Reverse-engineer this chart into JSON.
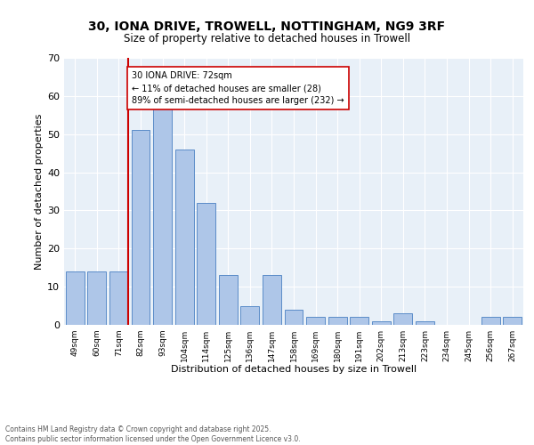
{
  "title_line1": "30, IONA DRIVE, TROWELL, NOTTINGHAM, NG9 3RF",
  "title_line2": "Size of property relative to detached houses in Trowell",
  "xlabel": "Distribution of detached houses by size in Trowell",
  "ylabel": "Number of detached properties",
  "categories": [
    "49sqm",
    "60sqm",
    "71sqm",
    "82sqm",
    "93sqm",
    "104sqm",
    "114sqm",
    "125sqm",
    "136sqm",
    "147sqm",
    "158sqm",
    "169sqm",
    "180sqm",
    "191sqm",
    "202sqm",
    "213sqm",
    "223sqm",
    "234sqm",
    "245sqm",
    "256sqm",
    "267sqm"
  ],
  "values": [
    14,
    14,
    14,
    51,
    58,
    46,
    32,
    13,
    5,
    13,
    4,
    2,
    2,
    2,
    1,
    3,
    1,
    0,
    0,
    2,
    2
  ],
  "bar_color": "#aec6e8",
  "bar_edge_color": "#5b8cc8",
  "background_color": "#e8f0f8",
  "vline_color": "#cc0000",
  "annotation_title": "30 IONA DRIVE: 72sqm",
  "annotation_line1": "← 11% of detached houses are smaller (28)",
  "annotation_line2": "89% of semi-detached houses are larger (232) →",
  "annotation_box_color": "#cc0000",
  "footer_line1": "Contains HM Land Registry data © Crown copyright and database right 2025.",
  "footer_line2": "Contains public sector information licensed under the Open Government Licence v3.0.",
  "ylim": [
    0,
    70
  ],
  "yticks": [
    0,
    10,
    20,
    30,
    40,
    50,
    60,
    70
  ]
}
